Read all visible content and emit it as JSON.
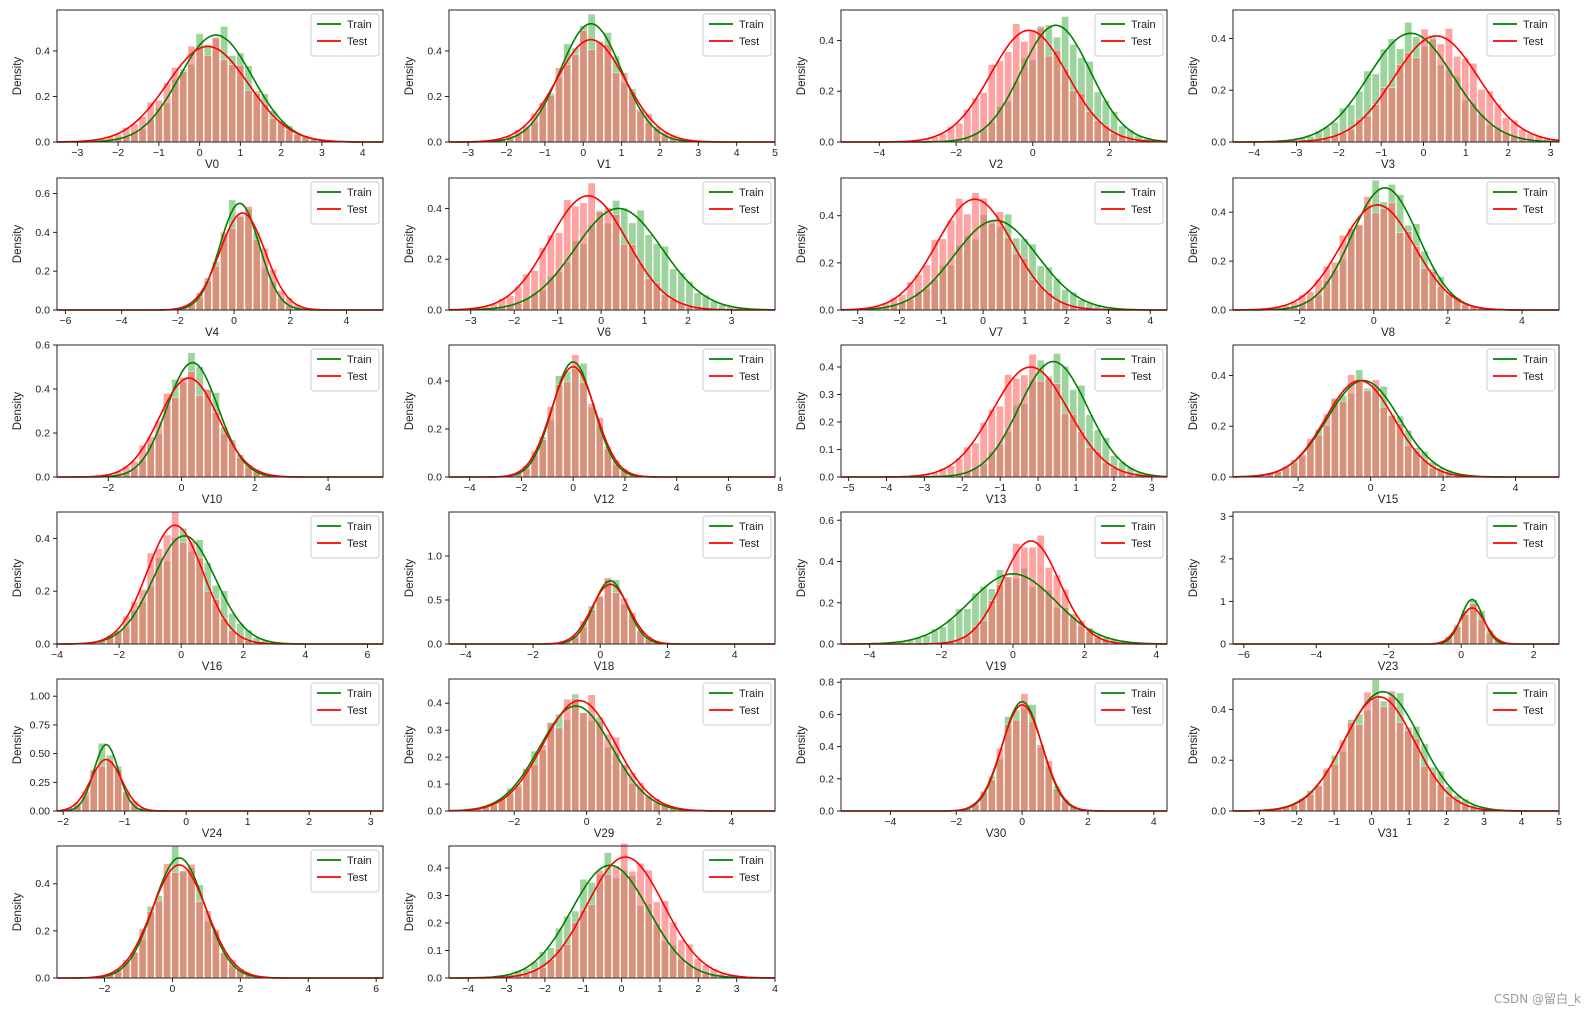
{
  "figure": {
    "watermark": "CSDN @留白_k",
    "y_label": "Density",
    "colors": {
      "train": "#008000",
      "test": "#ff0000",
      "train_hist": "#5cb85c",
      "test_hist": "#ff6666"
    }
  },
  "chart_data": [
    {
      "type": "histogram-kde",
      "xlabel": "V0",
      "ylabel": "Density",
      "xticks": [
        -3,
        -2,
        -1,
        0,
        1,
        2,
        3,
        4
      ],
      "yticks": [
        0.0,
        0.2,
        0.4
      ],
      "xlim": [
        -3.5,
        4.5
      ],
      "ylim": [
        0,
        0.58
      ],
      "legend": [
        "Train",
        "Test"
      ],
      "legend_position": "top-right",
      "series": [
        {
          "name": "Train",
          "mean": 0.4,
          "sd": 0.9,
          "peak": 0.47
        },
        {
          "name": "Test",
          "mean": 0.2,
          "sd": 1.0,
          "peak": 0.42
        }
      ]
    },
    {
      "type": "histogram-kde",
      "xlabel": "V1",
      "ylabel": "Density",
      "xticks": [
        -3,
        -2,
        -1,
        0,
        1,
        2,
        3,
        4,
        5
      ],
      "yticks": [
        0.0,
        0.2,
        0.4
      ],
      "xlim": [
        -3.5,
        5
      ],
      "ylim": [
        0,
        0.58
      ],
      "legend": [
        "Train",
        "Test"
      ],
      "legend_position": "top-right",
      "series": [
        {
          "name": "Train",
          "mean": 0.2,
          "sd": 0.8,
          "peak": 0.52
        },
        {
          "name": "Test",
          "mean": 0.2,
          "sd": 0.9,
          "peak": 0.45
        }
      ]
    },
    {
      "type": "histogram-kde",
      "xlabel": "V2",
      "ylabel": "Density",
      "xticks": [
        -4,
        -2,
        0,
        2
      ],
      "yticks": [
        0.0,
        0.2,
        0.4
      ],
      "xlim": [
        -5,
        3.5
      ],
      "ylim": [
        0,
        0.52
      ],
      "legend": [
        "Train",
        "Test"
      ],
      "legend_position": "top-right",
      "series": [
        {
          "name": "Train",
          "mean": 0.6,
          "sd": 0.9,
          "peak": 0.46
        },
        {
          "name": "Test",
          "mean": -0.1,
          "sd": 1.0,
          "peak": 0.44
        }
      ]
    },
    {
      "type": "histogram-kde",
      "xlabel": "V3",
      "ylabel": "Density",
      "xticks": [
        -4,
        -3,
        -2,
        -1,
        0,
        1,
        2,
        3
      ],
      "yticks": [
        0.0,
        0.2,
        0.4
      ],
      "xlim": [
        -4.5,
        3.2
      ],
      "ylim": [
        0,
        0.51
      ],
      "legend": [
        "Train",
        "Test"
      ],
      "legend_position": "top-right",
      "series": [
        {
          "name": "Train",
          "mean": -0.3,
          "sd": 1.0,
          "peak": 0.42
        },
        {
          "name": "Test",
          "mean": 0.3,
          "sd": 1.0,
          "peak": 0.41
        }
      ]
    },
    {
      "type": "histogram-kde",
      "xlabel": "V4",
      "ylabel": "Density",
      "xticks": [
        -6,
        -4,
        -2,
        0,
        2,
        4
      ],
      "yticks": [
        0.0,
        0.2,
        0.4,
        0.6
      ],
      "xlim": [
        -6.3,
        5.3
      ],
      "ylim": [
        0,
        0.68
      ],
      "legend": [
        "Train",
        "Test"
      ],
      "legend_position": "top-right",
      "series": [
        {
          "name": "Train",
          "mean": 0.2,
          "sd": 0.7,
          "peak": 0.55
        },
        {
          "name": "Test",
          "mean": 0.3,
          "sd": 0.8,
          "peak": 0.5
        }
      ]
    },
    {
      "type": "histogram-kde",
      "xlabel": "V6",
      "ylabel": "Density",
      "xticks": [
        -3,
        -2,
        -1,
        0,
        1,
        2,
        3
      ],
      "yticks": [
        0.0,
        0.2,
        0.4
      ],
      "xlim": [
        -3.5,
        4
      ],
      "ylim": [
        0,
        0.52
      ],
      "legend": [
        "Train",
        "Test"
      ],
      "legend_position": "top-right",
      "series": [
        {
          "name": "Train",
          "mean": 0.4,
          "sd": 1.0,
          "peak": 0.4
        },
        {
          "name": "Test",
          "mean": -0.3,
          "sd": 0.9,
          "peak": 0.45
        }
      ]
    },
    {
      "type": "histogram-kde",
      "xlabel": "V7",
      "ylabel": "Density",
      "xticks": [
        -3,
        -2,
        -1,
        0,
        1,
        2,
        3,
        4
      ],
      "yticks": [
        0.0,
        0.2,
        0.4
      ],
      "xlim": [
        -3.4,
        4.4
      ],
      "ylim": [
        0,
        0.56
      ],
      "legend": [
        "Train",
        "Test"
      ],
      "legend_position": "top-right",
      "series": [
        {
          "name": "Train",
          "mean": 0.3,
          "sd": 1.0,
          "peak": 0.38
        },
        {
          "name": "Test",
          "mean": -0.2,
          "sd": 0.9,
          "peak": 0.47
        }
      ]
    },
    {
      "type": "histogram-kde",
      "xlabel": "V8",
      "ylabel": "Density",
      "xticks": [
        -2,
        0,
        2,
        4
      ],
      "yticks": [
        0.0,
        0.2,
        0.4
      ],
      "xlim": [
        -3.8,
        5
      ],
      "ylim": [
        0,
        0.54
      ],
      "legend": [
        "Train",
        "Test"
      ],
      "legend_position": "top-right",
      "series": [
        {
          "name": "Train",
          "mean": 0.3,
          "sd": 0.9,
          "peak": 0.5
        },
        {
          "name": "Test",
          "mean": 0.1,
          "sd": 1.0,
          "peak": 0.43
        }
      ]
    },
    {
      "type": "histogram-kde",
      "xlabel": "V10",
      "ylabel": "Density",
      "xticks": [
        -2,
        0,
        2,
        4
      ],
      "yticks": [
        0.0,
        0.2,
        0.4,
        0.6
      ],
      "xlim": [
        -3.4,
        5.5
      ],
      "ylim": [
        0,
        0.6
      ],
      "legend": [
        "Train",
        "Test"
      ],
      "legend_position": "top-right",
      "series": [
        {
          "name": "Train",
          "mean": 0.3,
          "sd": 0.7,
          "peak": 0.52
        },
        {
          "name": "Test",
          "mean": 0.2,
          "sd": 0.8,
          "peak": 0.45
        }
      ]
    },
    {
      "type": "histogram-kde",
      "xlabel": "V12",
      "ylabel": "Density",
      "xticks": [
        -4,
        -2,
        0,
        2,
        4,
        6,
        8
      ],
      "yticks": [
        0.0,
        0.2,
        0.4
      ],
      "xlim": [
        -4.8,
        7.8
      ],
      "ylim": [
        0,
        0.55
      ],
      "legend": [
        "Train",
        "Test"
      ],
      "legend_position": "top-right",
      "series": [
        {
          "name": "Train",
          "mean": 0.0,
          "sd": 0.8,
          "peak": 0.48
        },
        {
          "name": "Test",
          "mean": 0.0,
          "sd": 0.85,
          "peak": 0.46
        }
      ]
    },
    {
      "type": "histogram-kde",
      "xlabel": "V13",
      "ylabel": "Density",
      "xticks": [
        -5,
        -4,
        -3,
        -2,
        -1,
        0,
        1,
        2,
        3
      ],
      "yticks": [
        0.0,
        0.1,
        0.2,
        0.3,
        0.4
      ],
      "xlim": [
        -5.2,
        3.4
      ],
      "ylim": [
        0,
        0.48
      ],
      "legend": [
        "Train",
        "Test"
      ],
      "legend_position": "top-right",
      "series": [
        {
          "name": "Train",
          "mean": 0.4,
          "sd": 0.9,
          "peak": 0.42
        },
        {
          "name": "Test",
          "mean": -0.2,
          "sd": 1.0,
          "peak": 0.4
        }
      ]
    },
    {
      "type": "histogram-kde",
      "xlabel": "V15",
      "ylabel": "Density",
      "xticks": [
        -2,
        0,
        2,
        4
      ],
      "yticks": [
        0.0,
        0.2,
        0.4
      ],
      "xlim": [
        -3.8,
        5.2
      ],
      "ylim": [
        0,
        0.52
      ],
      "legend": [
        "Train",
        "Test"
      ],
      "legend_position": "top-right",
      "series": [
        {
          "name": "Train",
          "mean": -0.2,
          "sd": 1.0,
          "peak": 0.38
        },
        {
          "name": "Test",
          "mean": -0.3,
          "sd": 0.95,
          "peak": 0.38
        }
      ]
    },
    {
      "type": "histogram-kde",
      "xlabel": "V16",
      "ylabel": "Density",
      "xticks": [
        -4,
        -2,
        0,
        2,
        4,
        6
      ],
      "yticks": [
        0.0,
        0.2,
        0.4
      ],
      "xlim": [
        -4,
        6.5
      ],
      "ylim": [
        0,
        0.5
      ],
      "legend": [
        "Train",
        "Test"
      ],
      "legend_position": "top-right",
      "series": [
        {
          "name": "Train",
          "mean": 0.1,
          "sd": 1.0,
          "peak": 0.41
        },
        {
          "name": "Test",
          "mean": -0.2,
          "sd": 0.9,
          "peak": 0.45
        }
      ]
    },
    {
      "type": "histogram-kde",
      "xlabel": "V18",
      "ylabel": "Density",
      "xticks": [
        -4,
        -2,
        0,
        2,
        4
      ],
      "yticks": [
        0.0,
        0.5,
        1.0
      ],
      "xlim": [
        -4.5,
        5.2
      ],
      "ylim": [
        0,
        1.5
      ],
      "legend": [
        "Train",
        "Test"
      ],
      "legend_position": "top-right",
      "series": [
        {
          "name": "Train",
          "mean": 0.3,
          "sd": 0.5,
          "peak": 0.72
        },
        {
          "name": "Test",
          "mean": 0.3,
          "sd": 0.55,
          "peak": 0.68
        }
      ]
    },
    {
      "type": "histogram-kde",
      "xlabel": "V19",
      "ylabel": "Density",
      "xticks": [
        -4,
        -2,
        0,
        2,
        4
      ],
      "yticks": [
        0.0,
        0.2,
        0.4,
        0.6
      ],
      "xlim": [
        -4.8,
        4.3
      ],
      "ylim": [
        0,
        0.64
      ],
      "legend": [
        "Train",
        "Test"
      ],
      "legend_position": "top-right",
      "series": [
        {
          "name": "Train",
          "mean": 0.0,
          "sd": 1.2,
          "peak": 0.34
        },
        {
          "name": "Test",
          "mean": 0.5,
          "sd": 0.8,
          "peak": 0.5
        }
      ]
    },
    {
      "type": "histogram-kde",
      "xlabel": "V23",
      "ylabel": "Density",
      "xticks": [
        -6,
        -4,
        -2,
        0,
        2
      ],
      "yticks": [
        0,
        1,
        2,
        3
      ],
      "xlim": [
        -6.3,
        2.7
      ],
      "ylim": [
        0,
        3.1
      ],
      "legend": [
        "Train",
        "Test"
      ],
      "legend_position": "top-right",
      "series": [
        {
          "name": "Train",
          "mean": 0.3,
          "sd": 0.3,
          "peak": 1.05
        },
        {
          "name": "Test",
          "mean": 0.3,
          "sd": 0.35,
          "peak": 0.85
        }
      ]
    },
    {
      "type": "histogram-kde",
      "xlabel": "V24",
      "ylabel": "Density",
      "xticks": [
        -2,
        -1,
        0,
        1,
        2,
        3
      ],
      "yticks": [
        0.0,
        0.25,
        0.5,
        0.75,
        1.0
      ],
      "xlim": [
        -2.1,
        3.2
      ],
      "ylim": [
        0,
        1.15
      ],
      "legend": [
        "Train",
        "Test"
      ],
      "legend_position": "top-right",
      "series": [
        {
          "name": "Train",
          "mean": -1.3,
          "sd": 0.2,
          "peak": 0.58
        },
        {
          "name": "Test",
          "mean": -1.3,
          "sd": 0.25,
          "peak": 0.45
        }
      ]
    },
    {
      "type": "histogram-kde",
      "xlabel": "V29",
      "ylabel": "Density",
      "xticks": [
        -2,
        0,
        2,
        4
      ],
      "yticks": [
        0.0,
        0.1,
        0.2,
        0.3,
        0.4
      ],
      "xlim": [
        -3.8,
        5.2
      ],
      "ylim": [
        0,
        0.49
      ],
      "legend": [
        "Train",
        "Test"
      ],
      "legend_position": "top-right",
      "series": [
        {
          "name": "Train",
          "mean": -0.3,
          "sd": 1.0,
          "peak": 0.39
        },
        {
          "name": "Test",
          "mean": -0.2,
          "sd": 1.0,
          "peak": 0.41
        }
      ]
    },
    {
      "type": "histogram-kde",
      "xlabel": "V30",
      "ylabel": "Density",
      "xticks": [
        -4,
        -2,
        0,
        2,
        4
      ],
      "yticks": [
        0.0,
        0.2,
        0.4,
        0.6,
        0.8
      ],
      "xlim": [
        -5.5,
        4.4
      ],
      "ylim": [
        0,
        0.82
      ],
      "legend": [
        "Train",
        "Test"
      ],
      "legend_position": "top-right",
      "series": [
        {
          "name": "Train",
          "mean": 0.0,
          "sd": 0.6,
          "peak": 0.68
        },
        {
          "name": "Test",
          "mean": 0.0,
          "sd": 0.62,
          "peak": 0.66
        }
      ]
    },
    {
      "type": "histogram-kde",
      "xlabel": "V31",
      "ylabel": "Density",
      "xticks": [
        -3,
        -2,
        -1,
        0,
        1,
        2,
        3,
        4,
        5
      ],
      "yticks": [
        0.0,
        0.2,
        0.4
      ],
      "xlim": [
        -3.7,
        5
      ],
      "ylim": [
        0,
        0.52
      ],
      "legend": [
        "Train",
        "Test"
      ],
      "legend_position": "top-right",
      "series": [
        {
          "name": "Train",
          "mean": 0.3,
          "sd": 1.0,
          "peak": 0.47
        },
        {
          "name": "Test",
          "mean": 0.2,
          "sd": 0.95,
          "peak": 0.45
        }
      ]
    },
    {
      "type": "histogram-kde",
      "xlabel": "",
      "ylabel": "Density",
      "xticks": [
        -2,
        0,
        2,
        4,
        6
      ],
      "yticks": [
        0.0,
        0.2,
        0.4
      ],
      "xlim": [
        -3.4,
        6.2
      ],
      "ylim": [
        0,
        0.56
      ],
      "legend": [
        "Train",
        "Test"
      ],
      "legend_position": "top-right",
      "series": [
        {
          "name": "Train",
          "mean": 0.2,
          "sd": 0.75,
          "peak": 0.51
        },
        {
          "name": "Test",
          "mean": 0.2,
          "sd": 0.8,
          "peak": 0.48
        }
      ]
    },
    {
      "type": "histogram-kde",
      "xlabel": "",
      "ylabel": "Density",
      "xticks": [
        -4,
        -3,
        -2,
        -1,
        0,
        1,
        2,
        3,
        4
      ],
      "yticks": [
        0.0,
        0.1,
        0.2,
        0.3,
        0.4
      ],
      "xlim": [
        -4.5,
        4
      ],
      "ylim": [
        0,
        0.48
      ],
      "legend": [
        "Train",
        "Test"
      ],
      "legend_position": "top-right",
      "series": [
        {
          "name": "Train",
          "mean": -0.3,
          "sd": 1.0,
          "peak": 0.41
        },
        {
          "name": "Test",
          "mean": 0.1,
          "sd": 1.0,
          "peak": 0.44
        }
      ]
    }
  ]
}
